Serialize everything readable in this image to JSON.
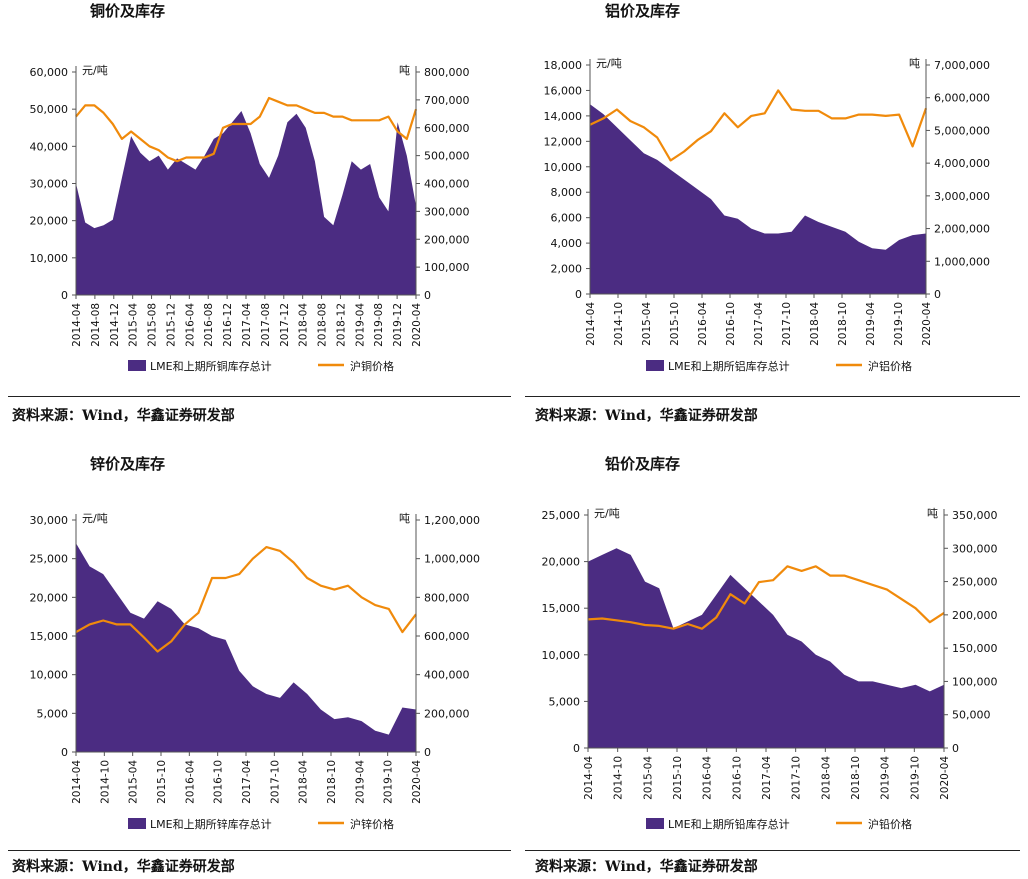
{
  "panels": [
    {
      "title": "铜价及库存",
      "source": "资料来源：Wind，华鑫证券研发部",
      "left_unit": "元/吨",
      "right_unit": "吨",
      "left_ticks": [
        "0",
        "10,000",
        "20,000",
        "30,000",
        "40,000",
        "50,000",
        "60,000"
      ],
      "right_ticks": [
        "0",
        "100,000",
        "200,000",
        "300,000",
        "400,000",
        "500,000",
        "600,000",
        "700,000",
        "800,000"
      ],
      "x_ticks": [
        "2014-04",
        "2014-08",
        "2014-12",
        "2015-04",
        "2015-08",
        "2015-12",
        "2016-04",
        "2016-08",
        "2016-12",
        "2017-04",
        "2017-08",
        "2017-12",
        "2018-04",
        "2018-08",
        "2018-12",
        "2019-04",
        "2019-08",
        "2019-12",
        "2020-04"
      ],
      "legend_area": "LME和上期所铜库存总计",
      "legend_line": "沪铜价格"
    },
    {
      "title": "铝价及库存",
      "source": "资料来源：Wind，华鑫证券研发部",
      "left_unit": "元/吨",
      "right_unit": "吨",
      "left_ticks": [
        "0",
        "2,000",
        "4,000",
        "6,000",
        "8,000",
        "10,000",
        "12,000",
        "14,000",
        "16,000",
        "18,000"
      ],
      "right_ticks": [
        "0",
        "1,000,000",
        "2,000,000",
        "3,000,000",
        "4,000,000",
        "5,000,000",
        "6,000,000",
        "7,000,000"
      ],
      "x_ticks": [
        "2014-04",
        "2014-10",
        "2015-04",
        "2015-10",
        "2016-04",
        "2016-10",
        "2017-04",
        "2017-10",
        "2018-04",
        "2018-10",
        "2019-04",
        "2019-10",
        "2020-04"
      ],
      "legend_area": "LME和上期所铝库存总计",
      "legend_line": "沪铝价格"
    },
    {
      "title": "锌价及库存",
      "source": "资料来源：Wind，华鑫证券研发部",
      "left_unit": "元/吨",
      "right_unit": "吨",
      "left_ticks": [
        "0",
        "5,000",
        "10,000",
        "15,000",
        "20,000",
        "25,000",
        "30,000"
      ],
      "right_ticks": [
        "0",
        "200,000",
        "400,000",
        "600,000",
        "800,000",
        "1,000,000",
        "1,200,000"
      ],
      "x_ticks": [
        "2014-04",
        "2014-10",
        "2015-04",
        "2015-10",
        "2016-04",
        "2016-10",
        "2017-04",
        "2017-10",
        "2018-04",
        "2018-10",
        "2019-04",
        "2019-10",
        "2020-04"
      ],
      "legend_area": "LME和上期所锌库存总计",
      "legend_line": "沪锌价格"
    },
    {
      "title": "铅价及库存",
      "source": "资料来源：Wind，华鑫证券研发部",
      "left_unit": "元/吨",
      "right_unit": "吨",
      "left_ticks": [
        "0",
        "5,000",
        "10,000",
        "15,000",
        "20,000",
        "25,000"
      ],
      "right_ticks": [
        "0",
        "50,000",
        "100,000",
        "150,000",
        "200,000",
        "250,000",
        "300,000",
        "350,000"
      ],
      "x_ticks": [
        "2014-04",
        "2014-10",
        "2015-04",
        "2015-10",
        "2016-04",
        "2016-10",
        "2017-04",
        "2017-10",
        "2018-04",
        "2018-10",
        "2019-04",
        "2019-10",
        "2020-04"
      ],
      "legend_area": "LME和上期所铅库存总计",
      "legend_line": "沪铅价格"
    }
  ],
  "colors": {
    "area": "#4b2c82",
    "line": "#f08a0b",
    "axis": "#555555",
    "text": "#111111"
  },
  "chart_data": [
    {
      "type": "area",
      "title": "铜价及库存",
      "x": [
        "2014-04",
        "2014-06",
        "2014-08",
        "2014-10",
        "2014-12",
        "2015-02",
        "2015-04",
        "2015-06",
        "2015-08",
        "2015-10",
        "2015-12",
        "2016-02",
        "2016-04",
        "2016-06",
        "2016-08",
        "2016-10",
        "2016-12",
        "2017-02",
        "2017-04",
        "2017-06",
        "2017-08",
        "2017-10",
        "2017-12",
        "2018-02",
        "2018-04",
        "2018-06",
        "2018-08",
        "2018-10",
        "2018-12",
        "2019-02",
        "2019-04",
        "2019-06",
        "2019-08",
        "2019-10",
        "2019-12",
        "2020-02",
        "2020-04",
        "2020-05"
      ],
      "ylim_left": [
        0,
        60000
      ],
      "ylim_right": [
        0,
        800000
      ],
      "series": [
        {
          "name": "LME和上期所铜库存总计",
          "axis": "right",
          "kind": "area",
          "values": [
            400000,
            260000,
            240000,
            250000,
            270000,
            420000,
            570000,
            510000,
            480000,
            500000,
            450000,
            490000,
            470000,
            450000,
            500000,
            560000,
            580000,
            620000,
            660000,
            580000,
            470000,
            420000,
            500000,
            620000,
            650000,
            600000,
            480000,
            280000,
            250000,
            360000,
            480000,
            450000,
            470000,
            350000,
            300000,
            620000,
            500000,
            320000
          ]
        },
        {
          "name": "沪铜价格",
          "axis": "left",
          "kind": "line",
          "values": [
            48000,
            51000,
            51000,
            49000,
            46000,
            42000,
            44000,
            42000,
            40000,
            39000,
            37000,
            36000,
            37000,
            37000,
            37000,
            38000,
            45000,
            46000,
            46000,
            46000,
            48000,
            53000,
            52000,
            51000,
            51000,
            50000,
            49000,
            49000,
            48000,
            48000,
            47000,
            47000,
            47000,
            47000,
            48000,
            44000,
            42000,
            50000
          ]
        }
      ]
    },
    {
      "type": "area",
      "title": "铝价及库存",
      "x": [
        "2014-04",
        "2014-07",
        "2014-10",
        "2015-01",
        "2015-04",
        "2015-07",
        "2015-10",
        "2016-01",
        "2016-04",
        "2016-07",
        "2016-10",
        "2017-01",
        "2017-04",
        "2017-07",
        "2017-10",
        "2018-01",
        "2018-04",
        "2018-07",
        "2018-10",
        "2019-01",
        "2019-04",
        "2019-07",
        "2019-10",
        "2020-01",
        "2020-04",
        "2020-06"
      ],
      "ylim_left": [
        0,
        18000
      ],
      "ylim_right": [
        0,
        7000000
      ],
      "series": [
        {
          "name": "LME和上期所铝库存总计",
          "axis": "right",
          "kind": "area",
          "values": [
            5800000,
            5500000,
            5100000,
            4700000,
            4300000,
            4100000,
            3800000,
            3500000,
            3200000,
            2900000,
            2400000,
            2300000,
            2000000,
            1850000,
            1850000,
            1900000,
            2400000,
            2200000,
            2050000,
            1900000,
            1600000,
            1400000,
            1350000,
            1650000,
            1800000,
            1850000
          ]
        },
        {
          "name": "沪铝价格",
          "axis": "left",
          "kind": "line",
          "values": [
            13300,
            13800,
            14500,
            13600,
            13100,
            12300,
            10500,
            11200,
            12100,
            12800,
            14200,
            13100,
            14000,
            14200,
            16000,
            14500,
            14400,
            14400,
            13800,
            13800,
            14100,
            14100,
            14000,
            14100,
            11600,
            14600
          ]
        }
      ]
    },
    {
      "type": "area",
      "title": "锌价及库存",
      "x": [
        "2014-04",
        "2014-07",
        "2014-10",
        "2015-01",
        "2015-04",
        "2015-07",
        "2015-10",
        "2016-01",
        "2016-04",
        "2016-07",
        "2016-10",
        "2017-01",
        "2017-04",
        "2017-07",
        "2017-10",
        "2018-01",
        "2018-04",
        "2018-07",
        "2018-10",
        "2019-01",
        "2019-04",
        "2019-07",
        "2019-10",
        "2020-01",
        "2020-04",
        "2020-06"
      ],
      "ylim_left": [
        0,
        30000
      ],
      "ylim_right": [
        0,
        1200000
      ],
      "series": [
        {
          "name": "LME和上期所锌库存总计",
          "axis": "right",
          "kind": "area",
          "values": [
            1080000,
            960000,
            920000,
            820000,
            720000,
            690000,
            780000,
            740000,
            660000,
            640000,
            600000,
            580000,
            420000,
            340000,
            300000,
            280000,
            360000,
            300000,
            220000,
            170000,
            180000,
            160000,
            110000,
            90000,
            230000,
            220000
          ]
        },
        {
          "name": "沪锌价格",
          "axis": "left",
          "kind": "line",
          "values": [
            15500,
            16500,
            17000,
            16500,
            16500,
            14800,
            13000,
            14300,
            16500,
            18000,
            22500,
            22500,
            23000,
            25000,
            26500,
            26000,
            24500,
            22500,
            21500,
            21000,
            21500,
            20000,
            19000,
            18500,
            15500,
            17800
          ]
        }
      ]
    },
    {
      "type": "area",
      "title": "铅价及库存",
      "x": [
        "2014-04",
        "2014-07",
        "2014-10",
        "2015-01",
        "2015-04",
        "2015-07",
        "2015-10",
        "2016-01",
        "2016-04",
        "2016-07",
        "2016-10",
        "2017-01",
        "2017-04",
        "2017-07",
        "2017-10",
        "2018-01",
        "2018-04",
        "2018-07",
        "2018-10",
        "2019-01",
        "2019-04",
        "2019-07",
        "2019-10",
        "2020-01",
        "2020-04",
        "2020-06"
      ],
      "ylim_left": [
        0,
        25000
      ],
      "ylim_right": [
        0,
        350000
      ],
      "series": [
        {
          "name": "LME和上期所铅库存总计",
          "axis": "right",
          "kind": "area",
          "values": [
            280000,
            290000,
            300000,
            290000,
            250000,
            240000,
            180000,
            190000,
            200000,
            230000,
            260000,
            240000,
            220000,
            200000,
            170000,
            160000,
            140000,
            130000,
            110000,
            100000,
            100000,
            95000,
            90000,
            95000,
            85000,
            95000
          ]
        },
        {
          "name": "沪铅价格",
          "axis": "left",
          "kind": "line",
          "values": [
            13800,
            13900,
            13700,
            13500,
            13200,
            13100,
            12800,
            13300,
            12800,
            14000,
            16500,
            15500,
            17800,
            18000,
            19500,
            19000,
            19500,
            18500,
            18500,
            18000,
            17500,
            17000,
            16000,
            15000,
            13500,
            14500
          ]
        }
      ]
    }
  ]
}
